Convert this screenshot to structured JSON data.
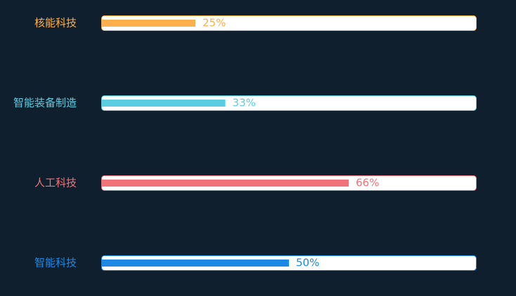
{
  "chart_data": {
    "type": "bar",
    "categories": [
      "核能科技",
      "智能装备制造",
      "人工科技",
      "智能科技"
    ],
    "values": [
      25,
      33,
      66,
      50
    ],
    "value_labels": [
      "25%",
      "33%",
      "66%",
      "50%"
    ],
    "colors": [
      "#fbb04b",
      "#5bcde1",
      "#f0737a",
      "#1e88e5"
    ],
    "xlim": [
      0,
      100
    ]
  }
}
